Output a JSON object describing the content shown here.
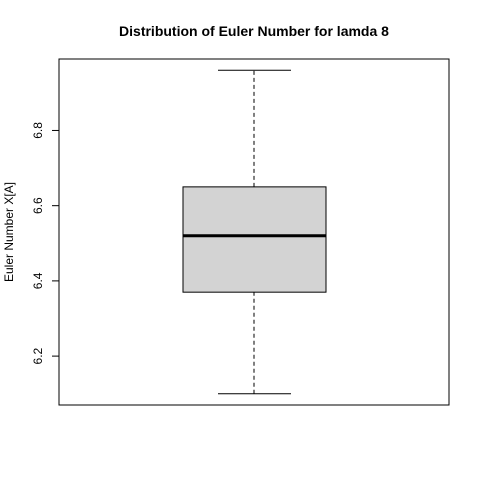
{
  "chart_data": {
    "type": "boxplot",
    "title": "Distribution of Euler Number for lamda 8",
    "xlabel": "",
    "ylabel": "Euler Number X[A]",
    "ylim": [
      6.07,
      6.99
    ],
    "yticks": [
      "6.2",
      "6.4",
      "6.6",
      "6.8"
    ],
    "grid": false,
    "box": {
      "min": 6.1,
      "q1": 6.37,
      "median": 6.52,
      "q3": 6.65,
      "max": 6.96,
      "fill": "#d3d3d3"
    }
  }
}
